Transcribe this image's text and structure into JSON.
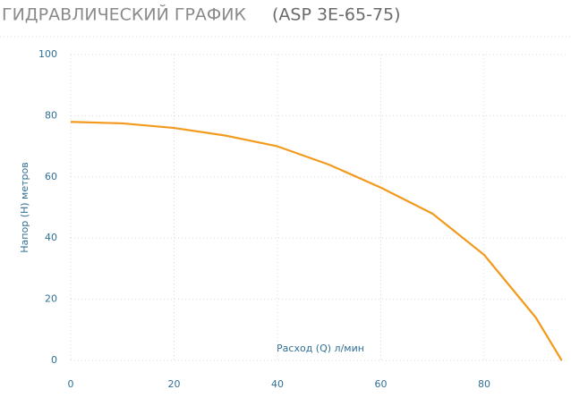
{
  "chart_data": {
    "type": "line",
    "title": "ГИДРАВЛИЧЕСКИЙ ГРАФИК",
    "subtitle": "(ASP 3E-65-75)",
    "x_label": "Расход (Q) л/мин",
    "y_label": "Напор (H) метров",
    "x": [
      0,
      10,
      20,
      30,
      40,
      50,
      60,
      70,
      80,
      90,
      95
    ],
    "series": [
      {
        "color": "#f29a1d",
        "values": [
          78,
          77.5,
          76,
          73.5,
          70,
          64,
          56.5,
          48,
          34.5,
          14,
          0
        ]
      }
    ],
    "xlim": [
      0,
      95
    ],
    "xticks": [
      0,
      20,
      40,
      60,
      80
    ],
    "ylim": [
      0,
      100
    ],
    "yticks": [
      0,
      20,
      40,
      60,
      80,
      100
    ],
    "grid": true
  }
}
